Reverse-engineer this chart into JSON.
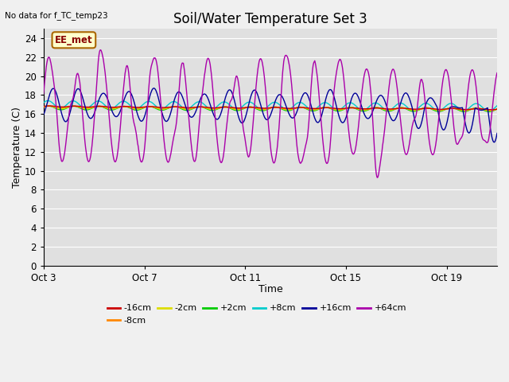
{
  "title": "Soil/Water Temperature Set 3",
  "subtitle": "No data for f_TC_temp23",
  "xlabel": "Time",
  "ylabel": "Temperature (C)",
  "ylim": [
    0,
    25
  ],
  "yticks": [
    0,
    2,
    4,
    6,
    8,
    10,
    12,
    14,
    16,
    18,
    20,
    22,
    24
  ],
  "xtick_labels": [
    "Oct 3",
    "Oct 7",
    "Oct 11",
    "Oct 15",
    "Oct 19"
  ],
  "xtick_positions": [
    0,
    4,
    8,
    12,
    16
  ],
  "n_days": 18,
  "legend_entries": [
    "-16cm",
    "-8cm",
    "-2cm",
    "+2cm",
    "+8cm",
    "+16cm",
    "+64cm"
  ],
  "legend_colors": [
    "#cc0000",
    "#ff8800",
    "#dddd00",
    "#00cc00",
    "#00cccc",
    "#000099",
    "#aa00aa"
  ],
  "annotation_text": "EE_met",
  "annotation_box_color": "#ffffcc",
  "annotation_border_color": "#aa6600",
  "annotation_text_color": "#880000",
  "fig_bg_color": "#f0f0f0",
  "plot_bg_color": "#e0e0e0",
  "grid_color": "#ffffff",
  "title_fontsize": 12,
  "axis_fontsize": 9,
  "tick_fontsize": 8.5
}
